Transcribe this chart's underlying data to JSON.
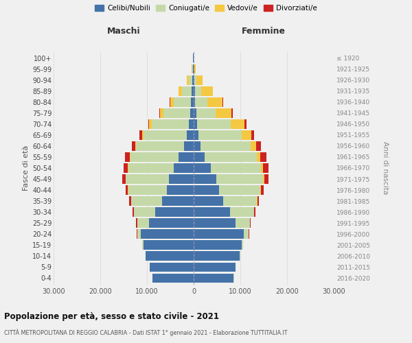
{
  "age_groups": [
    "0-4",
    "5-9",
    "10-14",
    "15-19",
    "20-24",
    "25-29",
    "30-34",
    "35-39",
    "40-44",
    "45-49",
    "50-54",
    "55-59",
    "60-64",
    "65-69",
    "70-74",
    "75-79",
    "80-84",
    "85-89",
    "90-94",
    "95-99",
    "100+"
  ],
  "birth_years": [
    "2016-2020",
    "2011-2015",
    "2006-2010",
    "2001-2005",
    "1996-2000",
    "1991-1995",
    "1986-1990",
    "1981-1985",
    "1976-1980",
    "1971-1975",
    "1966-1970",
    "1961-1965",
    "1956-1960",
    "1951-1955",
    "1946-1950",
    "1941-1945",
    "1936-1940",
    "1931-1935",
    "1926-1930",
    "1921-1925",
    "≤ 1920"
  ],
  "male": {
    "celibi": [
      8800,
      9400,
      10300,
      10800,
      11300,
      9600,
      8200,
      6800,
      5800,
      5300,
      4300,
      3300,
      2100,
      1400,
      1100,
      800,
      600,
      400,
      250,
      150,
      80
    ],
    "coniugati": [
      5,
      10,
      50,
      200,
      800,
      2500,
      4600,
      6600,
      8200,
      9200,
      9700,
      10200,
      10200,
      9300,
      7800,
      5700,
      3600,
      2100,
      800,
      150,
      50
    ],
    "vedovi": [
      1,
      2,
      5,
      10,
      20,
      30,
      40,
      50,
      60,
      80,
      100,
      150,
      200,
      400,
      600,
      700,
      800,
      700,
      400,
      100,
      20
    ],
    "divorziati": [
      2,
      5,
      10,
      30,
      80,
      150,
      300,
      400,
      500,
      700,
      900,
      1000,
      800,
      500,
      200,
      150,
      100,
      60,
      30,
      10,
      5
    ]
  },
  "female": {
    "nubili": [
      8600,
      9000,
      9900,
      10300,
      10800,
      9000,
      7800,
      6300,
      5500,
      4800,
      3700,
      2400,
      1500,
      1000,
      700,
      550,
      350,
      300,
      200,
      120,
      70
    ],
    "coniugate": [
      5,
      10,
      50,
      250,
      1000,
      3000,
      5100,
      7200,
      8700,
      10000,
      10700,
      11100,
      10700,
      9300,
      7200,
      4100,
      2600,
      1300,
      450,
      90,
      30
    ],
    "vedove": [
      1,
      3,
      8,
      15,
      30,
      60,
      80,
      120,
      180,
      300,
      500,
      800,
      1200,
      2000,
      3000,
      3500,
      3200,
      2500,
      1200,
      200,
      30
    ],
    "divorziate": [
      2,
      5,
      10,
      30,
      80,
      150,
      280,
      400,
      600,
      900,
      1200,
      1300,
      1000,
      600,
      400,
      200,
      150,
      80,
      30,
      10,
      5
    ]
  },
  "colors": {
    "celibi": "#4472a8",
    "coniugati": "#c5d9a8",
    "vedovi": "#f5c842",
    "divorziati": "#cc2222"
  },
  "xlim": 30000,
  "xticks": [
    -30000,
    -20000,
    -10000,
    0,
    10000,
    20000,
    30000
  ],
  "xtick_labels": [
    "30.000",
    "20.000",
    "10.000",
    "0",
    "10.000",
    "20.000",
    "30.000"
  ],
  "title": "Popolazione per età, sesso e stato civile - 2021",
  "subtitle": "CITTÀ METROPOLITANA DI REGGIO CALABRIA - Dati ISTAT 1° gennaio 2021 - Elaborazione TUTTITALIA.IT",
  "ylabel_left": "Fasce di età",
  "ylabel_right": "Anni di nascita",
  "header_left": "Maschi",
  "header_right": "Femmine",
  "legend_labels": [
    "Celibi/Nubili",
    "Coniugati/e",
    "Vedovi/e",
    "Divorziati/e"
  ],
  "bg_color": "#f0f0f0",
  "grid_color": "#cccccc"
}
